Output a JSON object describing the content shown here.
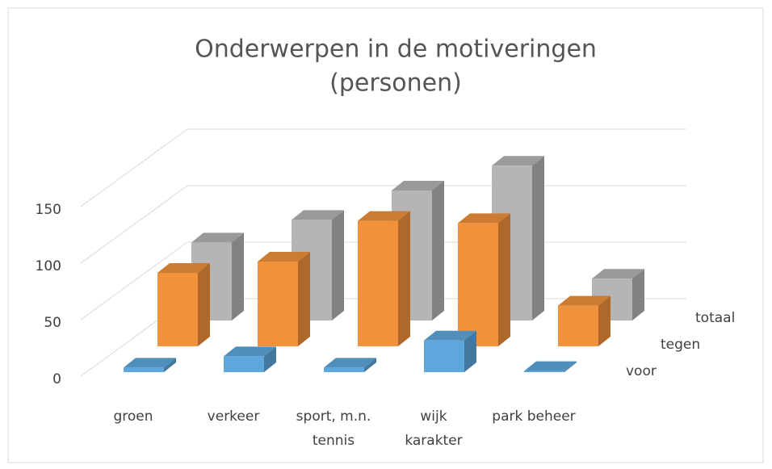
{
  "chart_data": {
    "type": "bar3d",
    "title": "Onderwerpen in de motiveringen",
    "subtitle": "(personen)",
    "categories": [
      "groen",
      "verkeer",
      "sport, m.n. tennis",
      "wijk karakter",
      "park beheer"
    ],
    "series": [
      {
        "name": "voor",
        "color": "#5ea7dd",
        "values": [
          4,
          14,
          4,
          28,
          1
        ]
      },
      {
        "name": "tegen",
        "color": "#f0913b",
        "values": [
          65,
          75,
          111,
          109,
          36
        ]
      },
      {
        "name": "totaal",
        "color": "#b5b5b5",
        "values": [
          69,
          89,
          115,
          137,
          37
        ]
      }
    ],
    "ylim": [
      0,
      150
    ],
    "yticks": [
      0,
      50,
      100,
      150
    ],
    "grid": true
  }
}
